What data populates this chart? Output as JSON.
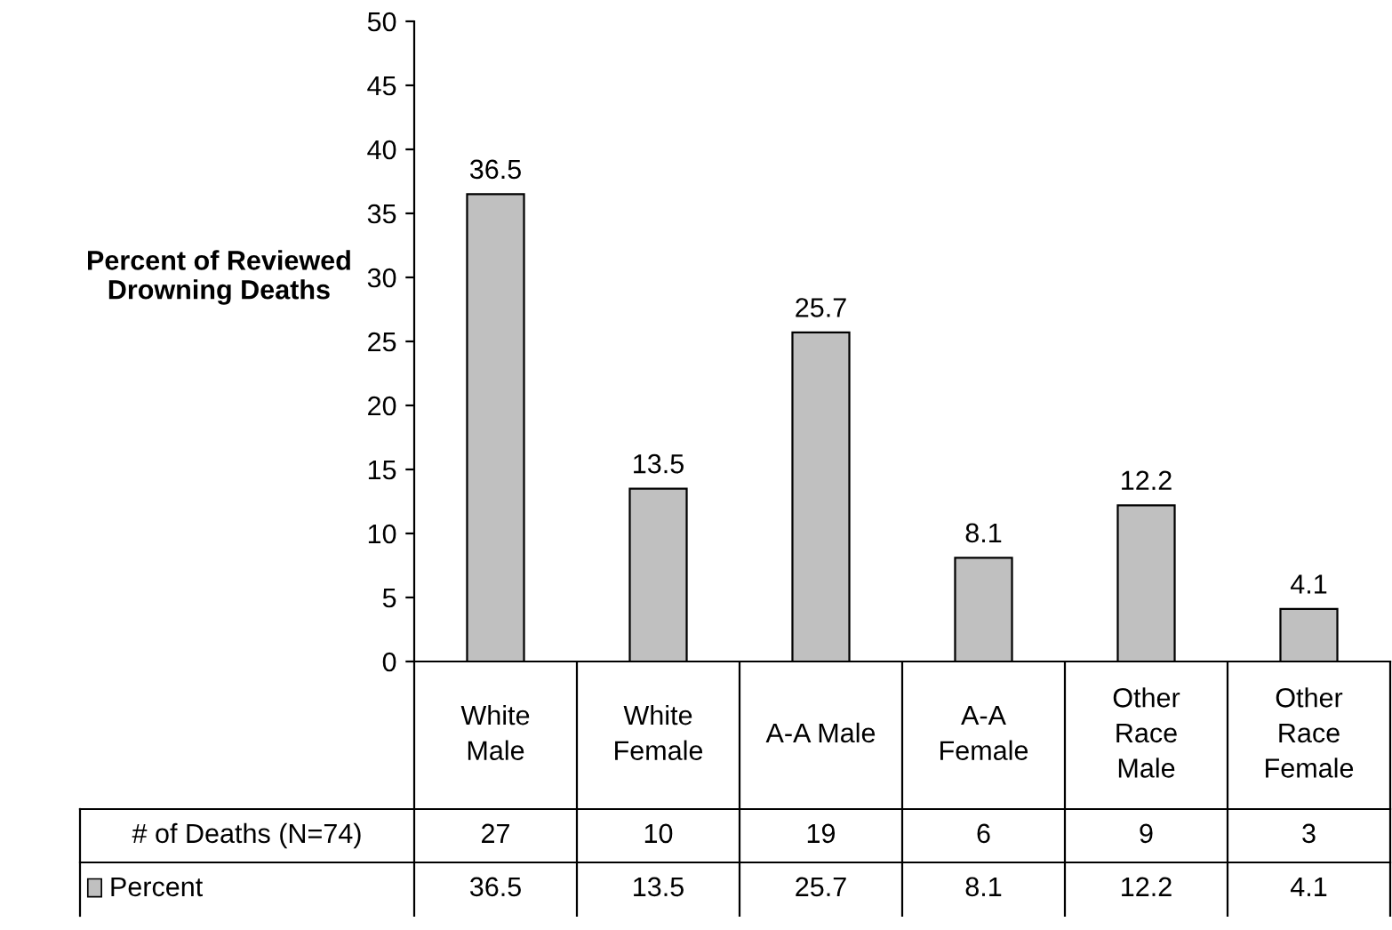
{
  "chart_data": {
    "type": "bar",
    "ylabel": "Percent of Reviewed\nDrowning Deaths",
    "categories": [
      "White\nMale",
      "White\nFemale",
      "A-A Male",
      "A-A\nFemale",
      "Other\nRace\nMale",
      "Other\nRace\nFemale"
    ],
    "series": [
      {
        "name": "Percent",
        "color": "#c0c0c0",
        "values": [
          36.5,
          13.5,
          25.7,
          8.1,
          12.2,
          4.1
        ],
        "value_labels": [
          "36.5",
          "13.5",
          "25.7",
          "8.1",
          "12.2",
          "4.1"
        ]
      }
    ],
    "ylim": [
      0,
      50
    ],
    "yticks": [
      0,
      5,
      10,
      15,
      20,
      25,
      30,
      35,
      40,
      45,
      50
    ],
    "grid": false,
    "legend": "bottom",
    "annotations": [
      "# of Deaths (N=74)",
      "27",
      "10",
      "19",
      "6",
      "9",
      "3",
      "36.5",
      "13.5",
      "25.7",
      "8.1",
      "12.2",
      "4.1"
    ]
  }
}
